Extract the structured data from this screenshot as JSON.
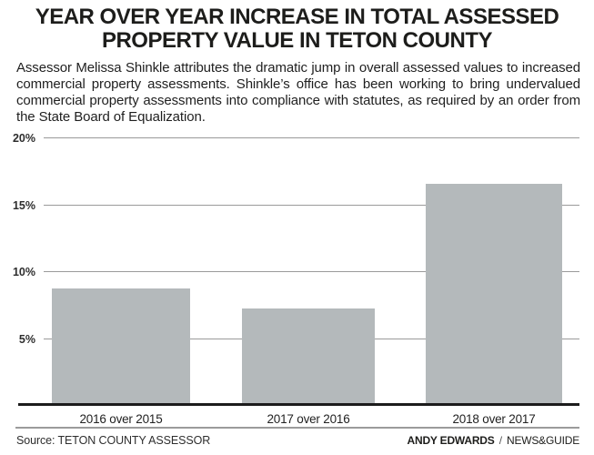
{
  "title": {
    "lines": [
      "YEAR OVER YEAR INCREASE IN TOTAL ASSESSED",
      "PROPERTY VALUE IN TETON COUNTY"
    ]
  },
  "description": "Assessor Melissa Shinkle attributes the dramatic jump in overall assessed values to increased commercial property assessments. Shinkle’s office has been working to bring undervalued commercial property assessments into compliance with statutes, as required by an order from the State Board of Equalization.",
  "chart_data": {
    "type": "bar",
    "categories": [
      "2016 over 2015",
      "2017 over 2016",
      "2018 over 2017"
    ],
    "values": [
      8.8,
      7.3,
      16.6
    ],
    "unit": "%",
    "title": "Year over year increase in total assessed property value in Teton County",
    "xlabel": "",
    "ylabel": "",
    "ylim": [
      0,
      20
    ],
    "yticks": [
      5,
      10,
      15,
      20
    ],
    "ytick_labels": [
      "5%",
      "10%",
      "15%",
      "20%"
    ],
    "grid": true,
    "legend": false,
    "bar_color": "#b4b9bb"
  },
  "footer": {
    "source": "Source: TETON COUNTY ASSESSOR",
    "credit_name": "ANDY EDWARDS",
    "credit_separator": "/",
    "credit_org": "NEWS&GUIDE"
  },
  "colors": {
    "bar": "#b4b9bb",
    "gridline": "#9a9a9a",
    "baseline": "#1c1c1c",
    "text": "#1d1d1b"
  }
}
